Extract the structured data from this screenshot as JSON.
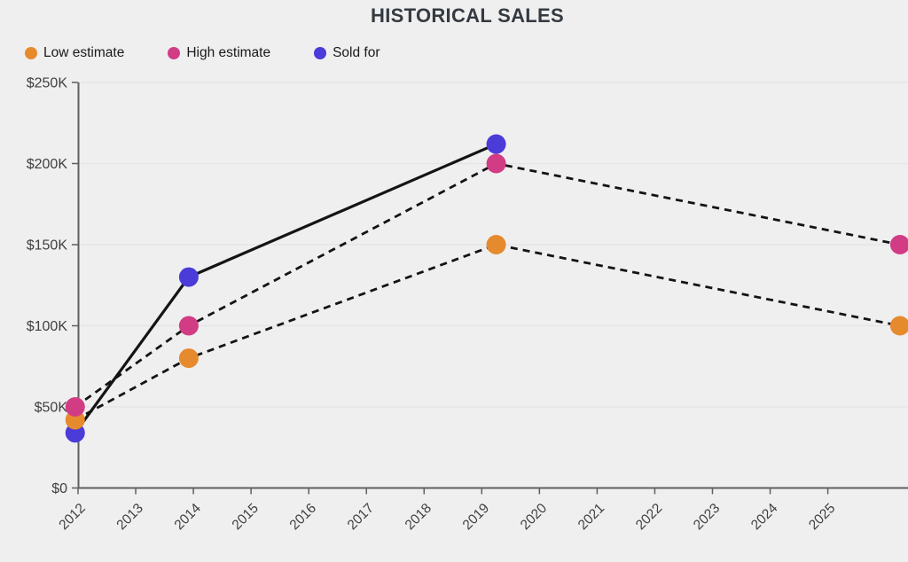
{
  "chart_data": {
    "type": "line",
    "title": "HISTORICAL SALES",
    "y_unit": "USD thousands",
    "grid": true,
    "legend_position": "top-left",
    "x_axis": {
      "range": [
        2012,
        2026.39
      ],
      "ticks": [
        2012,
        2013,
        2014,
        2015,
        2016,
        2017,
        2018,
        2019,
        2020,
        2021,
        2022,
        2023,
        2024,
        2025
      ],
      "tick_labels": [
        "2012",
        "2013",
        "2014",
        "2015",
        "2016",
        "2017",
        "2018",
        "2019",
        "2020",
        "2021",
        "2022",
        "2023",
        "2024",
        "2025"
      ]
    },
    "y_axis": {
      "range": [
        0,
        250
      ],
      "ticks": [
        {
          "value": 0,
          "label": "$0"
        },
        {
          "value": 50,
          "label": "$50K"
        },
        {
          "value": 100,
          "label": "$100K"
        },
        {
          "value": 150,
          "label": "$150K"
        },
        {
          "value": 200,
          "label": "$200K"
        },
        {
          "value": 250,
          "label": "$250K"
        }
      ]
    },
    "series": [
      {
        "name": "Low estimate",
        "point_color": "#e68a2e",
        "line_style": "dashed",
        "line_color": "#141414",
        "points": [
          {
            "x": 2011.95,
            "y": 42
          },
          {
            "x": 2013.92,
            "y": 80
          },
          {
            "x": 2019.25,
            "y": 150
          },
          {
            "x": 2026.25,
            "y": 100
          }
        ]
      },
      {
        "name": "High estimate",
        "point_color": "#d23c85",
        "line_style": "dashed",
        "line_color": "#141414",
        "points": [
          {
            "x": 2011.95,
            "y": 50
          },
          {
            "x": 2013.92,
            "y": 100
          },
          {
            "x": 2019.25,
            "y": 200
          },
          {
            "x": 2026.25,
            "y": 150
          }
        ]
      },
      {
        "name": "Sold for",
        "point_color": "#4b3bd8",
        "line_style": "solid",
        "line_color": "#141414",
        "points": [
          {
            "x": 2011.95,
            "y": 34
          },
          {
            "x": 2013.92,
            "y": 130
          },
          {
            "x": 2019.25,
            "y": 212
          }
        ]
      }
    ]
  },
  "style": {
    "background": "#efefef",
    "grid_color": "#e4e4e4",
    "axis_color": "#5f5f5f",
    "tick_text_color": "#3f3f3f",
    "title_color": "#343a40"
  }
}
